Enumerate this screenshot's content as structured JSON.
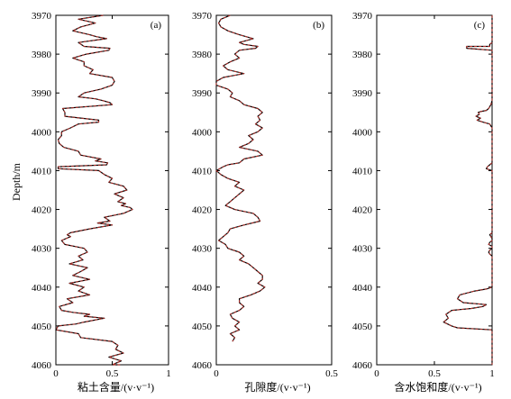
{
  "figure": {
    "ylabel": "Depth/m"
  },
  "chart_data": [
    {
      "type": "line",
      "panel": "(a)",
      "xlabel": "粘土含量/(v·v⁻¹)",
      "xlim": [
        0,
        1
      ],
      "xticks": [
        "0",
        "0.5",
        "1"
      ],
      "xtick_values": [
        0,
        0.5,
        1
      ],
      "ylim": [
        3970,
        4060
      ],
      "yticks": [
        "3970",
        "3980",
        "3990",
        "4000",
        "4010",
        "4020",
        "4030",
        "4040",
        "4050",
        "4060"
      ],
      "ytick_values": [
        3970,
        3980,
        3990,
        4000,
        4010,
        4020,
        4030,
        4040,
        4050,
        4060
      ],
      "show_ytick_labels": true,
      "series": [
        {
          "color": "#000000",
          "width": 1.2,
          "x": [
            0.42,
            0.2,
            0.35,
            0.22,
            0.15,
            0.3,
            0.36,
            0.45,
            0.2,
            0.25,
            0.48,
            0.47,
            0.27,
            0.15,
            0.25,
            0.25,
            0.33,
            0.3,
            0.5,
            0.52,
            0.5,
            0.4,
            0.25,
            0.2,
            0.35,
            0.42,
            0.48,
            0.5,
            0.06,
            0.08,
            0.08,
            0.38,
            0.38,
            0.2,
            0.13,
            0.05,
            0.05,
            0.02,
            0.03,
            0.07,
            0.2,
            0.22,
            0.4,
            0.35,
            0.46,
            0.45,
            0.02,
            0.02,
            0.38,
            0.43,
            0.5,
            0.47,
            0.6,
            0.63,
            0.52,
            0.6,
            0.55,
            0.62,
            0.58,
            0.66,
            0.68,
            0.6,
            0.43,
            0.48,
            0.37,
            0.5,
            0.3,
            0.13,
            0.1,
            0.13,
            0.05,
            0.08,
            0.25,
            0.28,
            0.2,
            0.24,
            0.12,
            0.28,
            0.22,
            0.15,
            0.3,
            0.12,
            0.25,
            0.2,
            0.3,
            0.1,
            0.15,
            0.03,
            0.05,
            0.15,
            0.3,
            0.25,
            0.43,
            0.25,
            0.18,
            0.02,
            0.0,
            0.2,
            0.22,
            0.5,
            0.55,
            0.53,
            0.6,
            0.47,
            0.58,
            0.5,
            0.57
          ],
          "y": [
            3970,
            3971,
            3972,
            3973,
            3974,
            3975,
            3975.5,
            3976,
            3977,
            3978,
            3978.5,
            3979,
            3980,
            3981,
            3982,
            3983,
            3984,
            3985,
            3986,
            3987,
            3988,
            3989,
            3990,
            3991,
            3991.5,
            3992,
            3992.5,
            3993,
            3994,
            3995,
            3996,
            3997,
            3997.5,
            3998,
            3999,
            4000,
            4001,
            4002,
            4003,
            4004,
            4005,
            4006,
            4007,
            4007.5,
            4008,
            4008.5,
            4009,
            4009.5,
            4010,
            4011,
            4012,
            4013,
            4014,
            4015,
            4016,
            4017,
            4018,
            4018.5,
            4019,
            4019.5,
            4020,
            4021,
            4022,
            4023,
            4023.5,
            4024,
            4025,
            4026,
            4026.5,
            4027,
            4028,
            4029,
            4030,
            4031,
            4032,
            4033,
            4034,
            4035,
            4036,
            4037,
            4038,
            4039,
            4040,
            4041,
            4042,
            4043,
            4044,
            4045,
            4046,
            4046.5,
            4047,
            4047.5,
            4048,
            4049,
            4049.5,
            4050,
            4051,
            4052,
            4053,
            4054,
            4055,
            4056,
            4057,
            4058,
            4059,
            4060,
            4060
          ]
        }
      ]
    },
    {
      "type": "line",
      "panel": "(b)",
      "xlabel": "孔隙度/(v·v⁻¹)",
      "xlim": [
        0,
        0.5
      ],
      "xticks": [
        "0",
        "0.5"
      ],
      "xtick_values": [
        0,
        0.5
      ],
      "ylim": [
        3970,
        4060
      ],
      "yticks": [
        "3970",
        "3980",
        "3990",
        "4000",
        "4010",
        "4020",
        "4030",
        "4040",
        "4050",
        "4060"
      ],
      "ytick_values": [
        3970,
        3980,
        3990,
        4000,
        4010,
        4020,
        4030,
        4040,
        4050,
        4060
      ],
      "show_ytick_labels": true,
      "series": [
        {
          "color": "#000000",
          "width": 1.2,
          "x": [
            0.06,
            0.02,
            0.01,
            0.02,
            0.05,
            0.1,
            0.16,
            0.1,
            0.12,
            0.18,
            0.17,
            0.1,
            0.08,
            0.1,
            0.06,
            0.03,
            0.05,
            0.12,
            0.03,
            0.0,
            0.0,
            0.05,
            0.07,
            0.06,
            0.1,
            0.12,
            0.18,
            0.2,
            0.18,
            0.19,
            0.17,
            0.2,
            0.18,
            0.14,
            0.16,
            0.14,
            0.1,
            0.18,
            0.2,
            0.12,
            0.1,
            0.05,
            0.03,
            0.0,
            0.02,
            0.05,
            0.1,
            0.08,
            0.12,
            0.1,
            0.08,
            0.06,
            0.04,
            0.08,
            0.16,
            0.18,
            0.19,
            0.12,
            0.06,
            0.05,
            0.03,
            0.01,
            0.04,
            0.05,
            0.1,
            0.12,
            0.1,
            0.14,
            0.16,
            0.18,
            0.2,
            0.2,
            0.18,
            0.21,
            0.19,
            0.15,
            0.1,
            0.1,
            0.12,
            0.1,
            0.06,
            0.07,
            0.1,
            0.08,
            0.1,
            0.06,
            0.08,
            0.07
          ],
          "y": [
            3970,
            3971,
            3972,
            3973,
            3974,
            3975,
            3976,
            3977,
            3977.5,
            3978,
            3978.5,
            3979,
            3980,
            3981,
            3982,
            3983,
            3984,
            3985,
            3986,
            3987,
            3988,
            3989,
            3990,
            3991,
            3992,
            3993,
            3994,
            3995,
            3996,
            3997,
            3998,
            3999,
            4000,
            4001,
            4002,
            4003,
            4004,
            4005,
            4006,
            4007,
            4008,
            4008.5,
            4009,
            4010,
            4011,
            4012,
            4013,
            4014,
            4015,
            4016,
            4017,
            4018,
            4019,
            4020,
            4021,
            4022,
            4023,
            4024,
            4025,
            4026,
            4027,
            4028,
            4029,
            4030,
            4031,
            4032,
            4033,
            4034,
            4035,
            4036,
            4037,
            4038,
            4039,
            4040,
            4041,
            4042,
            4043,
            4044,
            4045,
            4046,
            4047,
            4048,
            4049,
            4050,
            4051,
            4052,
            4053,
            4054
          ]
        }
      ]
    },
    {
      "type": "line",
      "panel": "(c)",
      "xlabel": "含水饱和度/(v·v⁻¹)",
      "xlim": [
        0,
        1
      ],
      "xticks": [
        "0",
        "0.5",
        "1"
      ],
      "xtick_values": [
        0,
        0.5,
        1
      ],
      "ylim": [
        3970,
        4060
      ],
      "yticks": [
        "3970",
        "3980",
        "3990",
        "4000",
        "4010",
        "4020",
        "4030",
        "4040",
        "4050",
        "4060"
      ],
      "ytick_values": [
        3970,
        3980,
        3990,
        4000,
        4010,
        4020,
        4030,
        4040,
        4050,
        4060
      ],
      "show_ytick_labels": true,
      "series": [
        {
          "color": "#000000",
          "width": 1.2,
          "x": [
            1,
            1,
            0.98,
            0.98,
            0.78,
            0.78,
            1,
            1,
            0.99,
            0.97,
            0.95,
            0.9,
            0.88,
            0.89,
            0.86,
            0.9,
            0.87,
            0.92,
            0.98,
            1,
            1,
            0.98,
            0.96,
            0.95,
            1,
            1,
            0.98,
            0.99,
            1,
            1,
            0.98,
            0.97,
            1,
            1,
            0.98,
            0.97,
            0.98,
            1,
            1,
            0.95,
            0.85,
            0.72,
            0.7,
            0.75,
            0.95,
            0.92,
            0.82,
            0.65,
            0.6,
            0.62,
            0.58,
            0.65,
            0.7,
            1,
            1,
            1
          ],
          "y": [
            3970,
            3977,
            3977.5,
            3978,
            3978,
            3978.5,
            3979,
            3992,
            3993,
            3994,
            3994.5,
            3994.8,
            3995,
            3995.5,
            3996,
            3996.5,
            3997,
            3997.5,
            3998,
            3999,
            4008,
            4008.5,
            4009,
            4009.5,
            4010,
            4026,
            4026.5,
            4027,
            4027.5,
            4028,
            4028.5,
            4029,
            4029.5,
            4030,
            4030.5,
            4031,
            4031.5,
            4032,
            4040,
            4040.5,
            4041,
            4042,
            4043,
            4044,
            4044.5,
            4045,
            4045.5,
            4046,
            4047,
            4048,
            4049,
            4050,
            4050.5,
            4051,
            4055,
            4060
          ]
        }
      ]
    }
  ]
}
